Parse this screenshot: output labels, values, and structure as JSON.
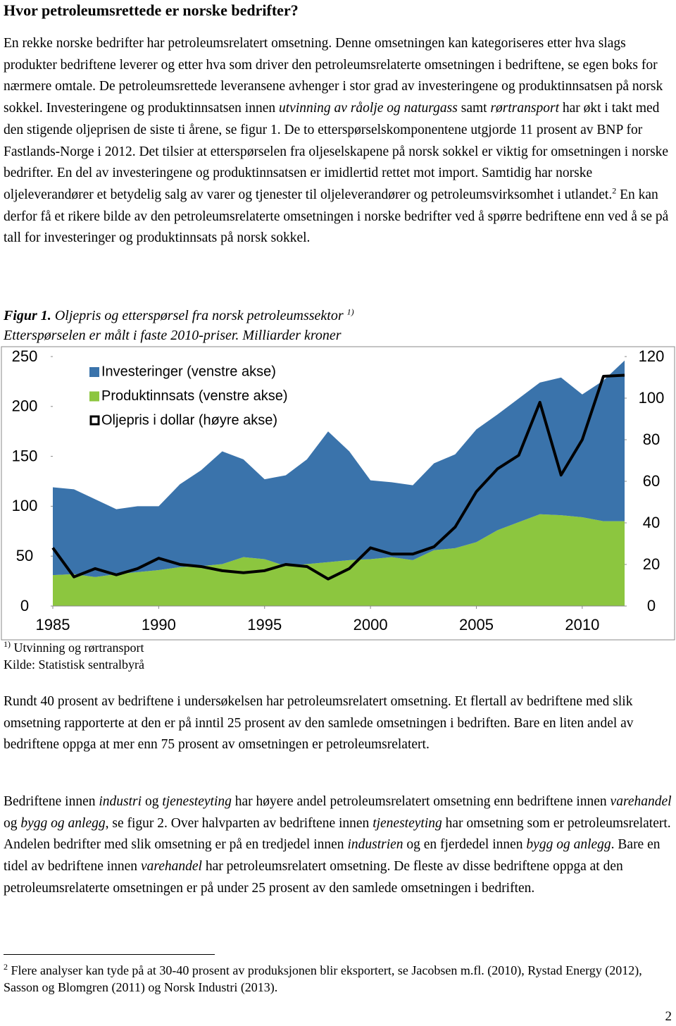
{
  "title": "Hvor petroleumsrettede er norske bedrifter?",
  "paragraphs": [
    [
      "En rekke norske bedrifter har petroleumsrelatert omsetning. Denne omsetningen kan kategoriseres etter hva slags produkter bedriftene leverer og etter hva som driver den petroleumsrelaterte omsetningen i bedriftene, se egen boks for nærmere omtale. De petroleumsrettede leveransene avhenger i stor grad av investeringene og produktinnsatsen på norsk sokkel. Investeringene og produktinnsatsen innen",
      "utvinning av råolje og naturgass",
      "samt",
      "rørtransport",
      "har økt i takt med den stigende oljeprisen de siste ti årene, se figur 1. De to etterspørselskomponentene utgjorde 11 prosent av BNP for Fastlands-Norge i 2012. Det tilsier at etterspørselen fra oljeselskapene på norsk sokkel er viktig for omsetningen i norske bedrifter. En del av investeringene og produktinnsatsen er imidlertid rettet mot import. Samtidig har norske oljeleverandører et betydelig salg av varer og tjenester til oljeleverandører og petroleumsvirksomhet i utlandet.",
      "2",
      "En kan derfor få et rikere bilde av den petroleumsrelaterte omsetningen i norske bedrifter ved å spørre bedriftene enn ved å se på tall for investeringer og produktinnsats på norsk sokkel."
    ],
    [
      "Rundt 40 prosent av bedriftene i undersøkelsen har petroleumsrelatert omsetning. Et flertall av bedriftene med slik omsetning rapporterte at den er på inntil 25 prosent av den samlede omsetningen i bedriften. Bare en liten andel av bedriftene oppga at mer enn 75 prosent av omsetningen er petroleumsrelatert."
    ],
    [
      "Bedriftene innen",
      "industri",
      "og",
      "tjenesteyting",
      "har høyere andel petroleumsrelatert omsetning enn bedriftene innen",
      "varehandel",
      "og",
      "bygg og anlegg",
      ", se figur 2. Over halvparten av bedriftene innen",
      "tjenesteyting",
      "har omsetning som er petroleumsrelatert. Andelen bedrifter med slik omsetning er på en tredjedel innen",
      "industrien",
      "og en fjerdedel innen",
      "bygg og anlegg",
      ". Bare en tidel av bedriftene innen",
      "varehandel",
      "har petroleumsrelatert omsetning. De fleste av disse bedriftene oppga at den petroleumsrelaterte omsetningen er på under 25 prosent av den samlede omsetningen i bedriften."
    ]
  ],
  "figure": {
    "label": "Figur 1.",
    "caption": "Oljepris og etterspørsel fra norsk petroleumssektor",
    "caption_note": "1)",
    "subcaption": "Etterspørselen er målt i faste 2010-priser. Milliarder kroner"
  },
  "chart_data": {
    "type": "area",
    "x": [
      1985,
      1986,
      1987,
      1988,
      1989,
      1990,
      1991,
      1992,
      1993,
      1994,
      1995,
      1996,
      1997,
      1998,
      1999,
      2000,
      2001,
      2002,
      2003,
      2004,
      2005,
      2006,
      2007,
      2008,
      2009,
      2010,
      2011,
      2012
    ],
    "series": [
      {
        "name": "Investeringer (venstre akse)",
        "color": "#3a73ab",
        "values": [
          88,
          85,
          78,
          65,
          66,
          64,
          83,
          96,
          113,
          98,
          80,
          91,
          105,
          131,
          109,
          79,
          75,
          75,
          87,
          94,
          113,
          116,
          124,
          132,
          138,
          123,
          141,
          161
        ]
      },
      {
        "name": "Produktinnsats (venstre akse)",
        "color": "#8cc63f",
        "values": [
          31,
          32,
          29,
          32,
          34,
          36,
          39,
          40,
          42,
          49,
          47,
          40,
          42,
          44,
          46,
          47,
          49,
          46,
          56,
          58,
          64,
          76,
          84,
          92,
          91,
          89,
          85,
          85
        ]
      },
      {
        "name": "Oljepris i dollar (høyre akse)",
        "color": "#000000",
        "axis": "y2",
        "values": [
          28,
          14,
          18,
          15,
          18,
          23,
          20,
          19,
          17,
          16,
          17,
          20,
          19,
          13,
          18,
          28,
          25,
          25,
          28.5,
          38,
          55,
          66,
          72.5,
          98,
          63,
          80,
          110.5,
          111
        ]
      }
    ],
    "xlim": [
      1985,
      2012
    ],
    "xticks": [
      1985,
      1990,
      1995,
      2000,
      2005,
      2010
    ],
    "ylim": [
      0,
      250
    ],
    "yticks": [
      0,
      50,
      100,
      150,
      200,
      250
    ],
    "y2lim": [
      0,
      120
    ],
    "y2ticks": [
      0,
      20,
      40,
      60,
      80,
      100,
      120
    ]
  },
  "notes": {
    "marker": "1)",
    "text": "Utvinning og rørtransport",
    "source": "Kilde: Statistisk sentralbyrå"
  },
  "footnote": {
    "marker": "2",
    "text": "Flere analyser kan tyde på at 30-40 prosent av produksjonen blir eksportert, se Jacobsen m.fl. (2010), Rystad Energy (2012), Sasson og Blomgren (2011) og Norsk Industri (2013)."
  },
  "page_number": "2"
}
